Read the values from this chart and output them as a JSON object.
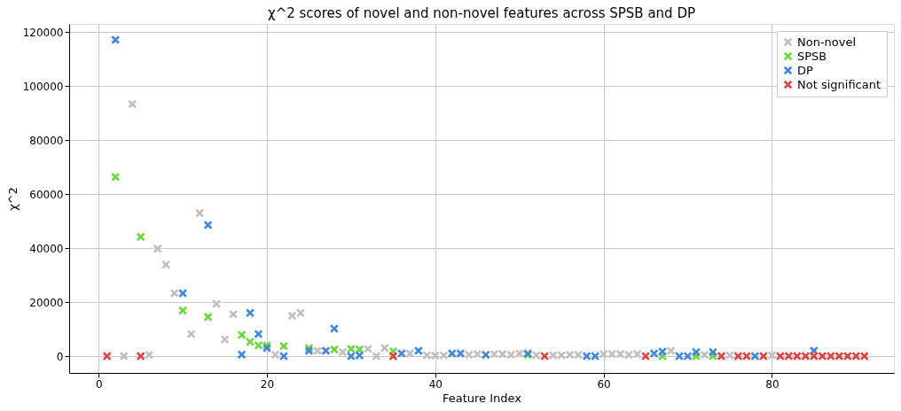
{
  "chart_data": {
    "type": "scatter",
    "title": "χ^2 scores of novel and non-novel features across SPSB and DP",
    "xlabel": "Feature Index",
    "ylabel": "χ^2",
    "xlim": [
      -3.5,
      94.5
    ],
    "ylim": [
      -6200,
      123100
    ],
    "xticks": [
      0,
      20,
      40,
      60,
      80
    ],
    "yticks": [
      0,
      20000,
      40000,
      60000,
      80000,
      100000,
      120000
    ],
    "grid": true,
    "legend": "top right",
    "marker": "cross",
    "series": [
      {
        "name": "Non-novel",
        "color": "#c0c0c0",
        "x": [
          3,
          4,
          6,
          7,
          8,
          9,
          11,
          12,
          14,
          15,
          16,
          21,
          23,
          24,
          26,
          29,
          32,
          33,
          34,
          37,
          39,
          40,
          41,
          44,
          45,
          47,
          48,
          49,
          50,
          52,
          54,
          55,
          56,
          57,
          60,
          61,
          62,
          63,
          64,
          68,
          72,
          75,
          80
        ],
        "values": [
          0,
          93400,
          500,
          39800,
          33900,
          23300,
          8200,
          53000,
          19400,
          6200,
          15500,
          500,
          15000,
          16000,
          2000,
          1500,
          2700,
          0,
          3000,
          1000,
          300,
          200,
          300,
          500,
          800,
          800,
          800,
          500,
          1000,
          300,
          300,
          300,
          500,
          500,
          800,
          800,
          800,
          500,
          800,
          2000,
          500,
          300,
          300
        ]
      },
      {
        "name": "SPSB",
        "color": "#6ad83f",
        "x": [
          2,
          5,
          10,
          13,
          17,
          18,
          19,
          20,
          22,
          25,
          28,
          30,
          31,
          35,
          51,
          67,
          71,
          73
        ],
        "values": [
          66400,
          44200,
          16900,
          14500,
          7900,
          5300,
          4000,
          4000,
          3700,
          3000,
          2500,
          2700,
          2500,
          1800,
          500,
          0,
          0,
          0
        ]
      },
      {
        "name": "DP",
        "color": "#4488dd",
        "x": [
          2,
          10,
          13,
          17,
          18,
          19,
          20,
          22,
          25,
          27,
          28,
          30,
          31,
          36,
          38,
          42,
          43,
          46,
          51,
          58,
          59,
          66,
          67,
          69,
          70,
          71,
          73,
          78,
          85
        ],
        "values": [
          117200,
          23300,
          48600,
          600,
          16000,
          8200,
          3000,
          0,
          2000,
          2000,
          10200,
          0,
          300,
          1000,
          2000,
          1000,
          1000,
          500,
          1000,
          0,
          0,
          1000,
          1700,
          0,
          0,
          1500,
          1500,
          0,
          2000
        ]
      },
      {
        "name": "Not significant",
        "color": "#dd4444",
        "x": [
          1,
          5,
          35,
          53,
          65,
          74,
          76,
          77,
          79,
          81,
          82,
          83,
          84,
          85,
          86,
          87,
          88,
          89,
          90,
          91
        ],
        "values": [
          0,
          0,
          0,
          0,
          0,
          0,
          0,
          0,
          0,
          0,
          0,
          0,
          0,
          0,
          0,
          0,
          0,
          0,
          0,
          0
        ]
      }
    ]
  }
}
